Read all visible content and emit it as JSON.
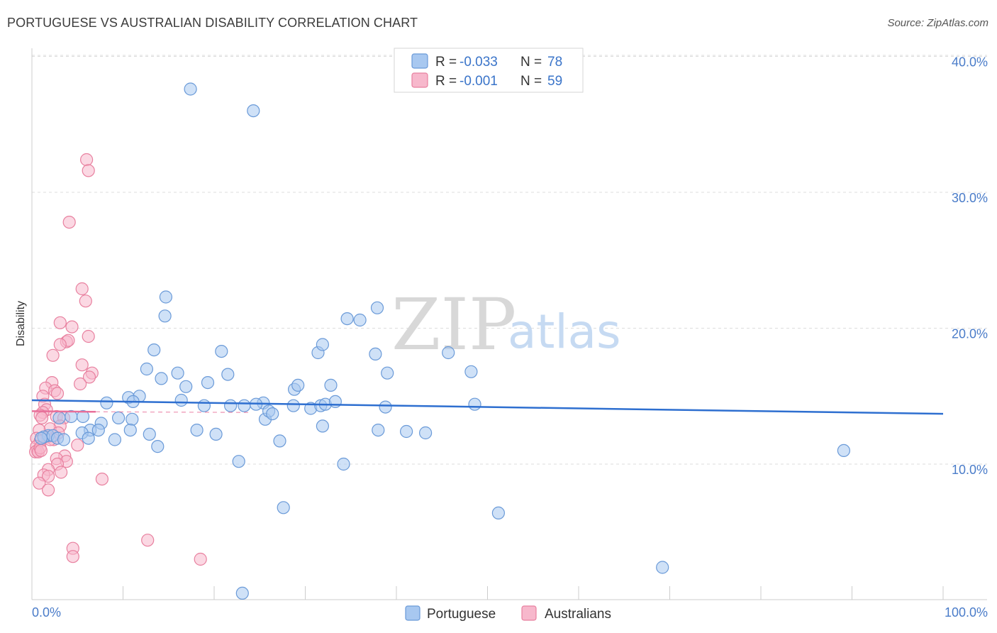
{
  "title": "PORTUGUESE VS AUSTRALIAN DISABILITY CORRELATION CHART",
  "source": "Source: ZipAtlas.com",
  "watermark": {
    "zip": "ZIP",
    "atlas": "atlas"
  },
  "colors": {
    "blue_fill": "#a8c8f0",
    "blue_stroke": "#6a9ad8",
    "blue_line": "#2e6fd0",
    "pink_fill": "#f7b8cc",
    "pink_stroke": "#e8809f",
    "pink_line": "#e8709a",
    "grid": "#dddddd",
    "tick_label": "#4a7cc9"
  },
  "chart_data": {
    "type": "scatter",
    "title": "PORTUGUESE VS AUSTRALIAN DISABILITY CORRELATION CHART",
    "xlabel": "",
    "ylabel": "Disability",
    "xlim": [
      0,
      100
    ],
    "ylim": [
      0,
      42
    ],
    "x_tick_labels": [
      {
        "value": 0,
        "label": "0.0%"
      },
      {
        "value": 100,
        "label": "100.0%"
      }
    ],
    "y_ticks": [
      {
        "value": 10,
        "label": "10.0%"
      },
      {
        "value": 20,
        "label": "20.0%"
      },
      {
        "value": 30,
        "label": "30.0%"
      },
      {
        "value": 40,
        "label": "40.0%"
      }
    ],
    "legend": {
      "position": "top-center",
      "entries": [
        {
          "series": "Portuguese",
          "r_label": "R = ",
          "r": "-0.033",
          "n_label": "N = ",
          "n": "78"
        },
        {
          "series": "Australians",
          "r_label": "R = ",
          "r": "-0.001",
          "n_label": "N = ",
          "n": "59"
        }
      ]
    },
    "series": [
      {
        "name": "Portuguese",
        "color": "blue",
        "trend": {
          "x": [
            0,
            100
          ],
          "y": [
            14.7,
            13.7
          ]
        },
        "points": [
          [
            17.4,
            37.6
          ],
          [
            24.3,
            36.0
          ],
          [
            14.7,
            22.3
          ],
          [
            14.6,
            20.9
          ],
          [
            13.4,
            18.4
          ],
          [
            20.8,
            18.3
          ],
          [
            12.6,
            17.0
          ],
          [
            14.2,
            16.3
          ],
          [
            16.0,
            16.7
          ],
          [
            16.9,
            15.7
          ],
          [
            19.3,
            16.0
          ],
          [
            21.5,
            16.6
          ],
          [
            10.6,
            14.9
          ],
          [
            11.8,
            15.0
          ],
          [
            8.2,
            14.5
          ],
          [
            11.1,
            14.6
          ],
          [
            16.4,
            14.7
          ],
          [
            18.9,
            14.3
          ],
          [
            9.5,
            13.4
          ],
          [
            7.6,
            13.0
          ],
          [
            11.0,
            13.3
          ],
          [
            4.3,
            13.5
          ],
          [
            5.6,
            13.5
          ],
          [
            3.0,
            13.4
          ],
          [
            1.8,
            12.1
          ],
          [
            1.3,
            12.0
          ],
          [
            2.3,
            12.1
          ],
          [
            2.8,
            11.9
          ],
          [
            1.0,
            11.9
          ],
          [
            3.5,
            11.8
          ],
          [
            6.4,
            12.5
          ],
          [
            5.5,
            12.3
          ],
          [
            7.3,
            12.5
          ],
          [
            6.2,
            11.9
          ],
          [
            10.8,
            12.5
          ],
          [
            12.9,
            12.2
          ],
          [
            9.1,
            11.8
          ],
          [
            13.8,
            11.3
          ],
          [
            18.1,
            12.5
          ],
          [
            20.2,
            12.2
          ],
          [
            21.8,
            14.3
          ],
          [
            23.3,
            14.3
          ],
          [
            25.4,
            14.5
          ],
          [
            25.6,
            13.3
          ],
          [
            26.0,
            13.9
          ],
          [
            26.4,
            13.7
          ],
          [
            24.6,
            14.4
          ],
          [
            28.7,
            14.3
          ],
          [
            28.8,
            15.5
          ],
          [
            29.2,
            15.8
          ],
          [
            27.2,
            11.7
          ],
          [
            22.7,
            10.2
          ],
          [
            27.6,
            6.8
          ],
          [
            30.6,
            14.1
          ],
          [
            31.7,
            14.3
          ],
          [
            32.2,
            14.4
          ],
          [
            33.3,
            14.6
          ],
          [
            32.8,
            15.8
          ],
          [
            31.4,
            18.2
          ],
          [
            31.9,
            18.8
          ],
          [
            34.6,
            20.7
          ],
          [
            36.0,
            20.6
          ],
          [
            37.9,
            21.5
          ],
          [
            37.7,
            18.1
          ],
          [
            39.0,
            16.7
          ],
          [
            38.8,
            14.2
          ],
          [
            38.0,
            12.5
          ],
          [
            31.9,
            12.8
          ],
          [
            34.2,
            10.0
          ],
          [
            41.1,
            12.4
          ],
          [
            43.2,
            12.3
          ],
          [
            45.7,
            18.2
          ],
          [
            48.2,
            16.8
          ],
          [
            48.6,
            14.4
          ],
          [
            51.2,
            6.4
          ],
          [
            69.2,
            2.4
          ],
          [
            89.1,
            11.0
          ],
          [
            23.1,
            0.5
          ]
        ]
      },
      {
        "name": "Australians",
        "color": "pink",
        "trend": {
          "x": [
            0,
            7
          ],
          "y": [
            13.9,
            13.85
          ]
        },
        "dashed_extension": {
          "x": [
            7,
            24
          ],
          "y": [
            13.85,
            13.8
          ]
        },
        "points": [
          [
            6.0,
            32.4
          ],
          [
            6.2,
            31.6
          ],
          [
            4.1,
            27.8
          ],
          [
            5.5,
            22.9
          ],
          [
            5.9,
            22.0
          ],
          [
            3.1,
            20.4
          ],
          [
            4.4,
            20.1
          ],
          [
            6.2,
            19.4
          ],
          [
            3.8,
            19.0
          ],
          [
            4.0,
            19.1
          ],
          [
            3.1,
            18.8
          ],
          [
            2.3,
            18.0
          ],
          [
            5.5,
            17.3
          ],
          [
            6.6,
            16.7
          ],
          [
            6.3,
            16.4
          ],
          [
            2.2,
            16.0
          ],
          [
            5.3,
            15.9
          ],
          [
            1.5,
            15.6
          ],
          [
            2.5,
            15.4
          ],
          [
            2.8,
            15.2
          ],
          [
            1.2,
            15.0
          ],
          [
            1.4,
            14.4
          ],
          [
            1.6,
            14.0
          ],
          [
            1.2,
            13.8
          ],
          [
            0.9,
            13.6
          ],
          [
            1.1,
            13.4
          ],
          [
            2.7,
            13.5
          ],
          [
            3.5,
            13.4
          ],
          [
            3.1,
            12.8
          ],
          [
            2.0,
            12.6
          ],
          [
            0.8,
            12.5
          ],
          [
            2.9,
            12.3
          ],
          [
            1.7,
            12.0
          ],
          [
            0.5,
            11.9
          ],
          [
            0.9,
            11.7
          ],
          [
            2.4,
            11.8
          ],
          [
            5.0,
            11.4
          ],
          [
            0.5,
            11.3
          ],
          [
            0.6,
            11.0
          ],
          [
            0.4,
            10.9
          ],
          [
            0.7,
            10.9
          ],
          [
            3.6,
            10.6
          ],
          [
            2.7,
            10.4
          ],
          [
            3.8,
            10.2
          ],
          [
            2.8,
            10.0
          ],
          [
            1.8,
            9.6
          ],
          [
            3.2,
            9.4
          ],
          [
            1.3,
            9.2
          ],
          [
            1.8,
            9.1
          ],
          [
            7.7,
            8.9
          ],
          [
            0.8,
            8.6
          ],
          [
            1.8,
            8.1
          ],
          [
            12.7,
            4.4
          ],
          [
            4.5,
            3.8
          ],
          [
            4.5,
            3.2
          ],
          [
            18.5,
            3.0
          ],
          [
            0.9,
            11.2
          ],
          [
            1.0,
            11.0
          ],
          [
            2.0,
            11.8
          ]
        ]
      }
    ]
  }
}
